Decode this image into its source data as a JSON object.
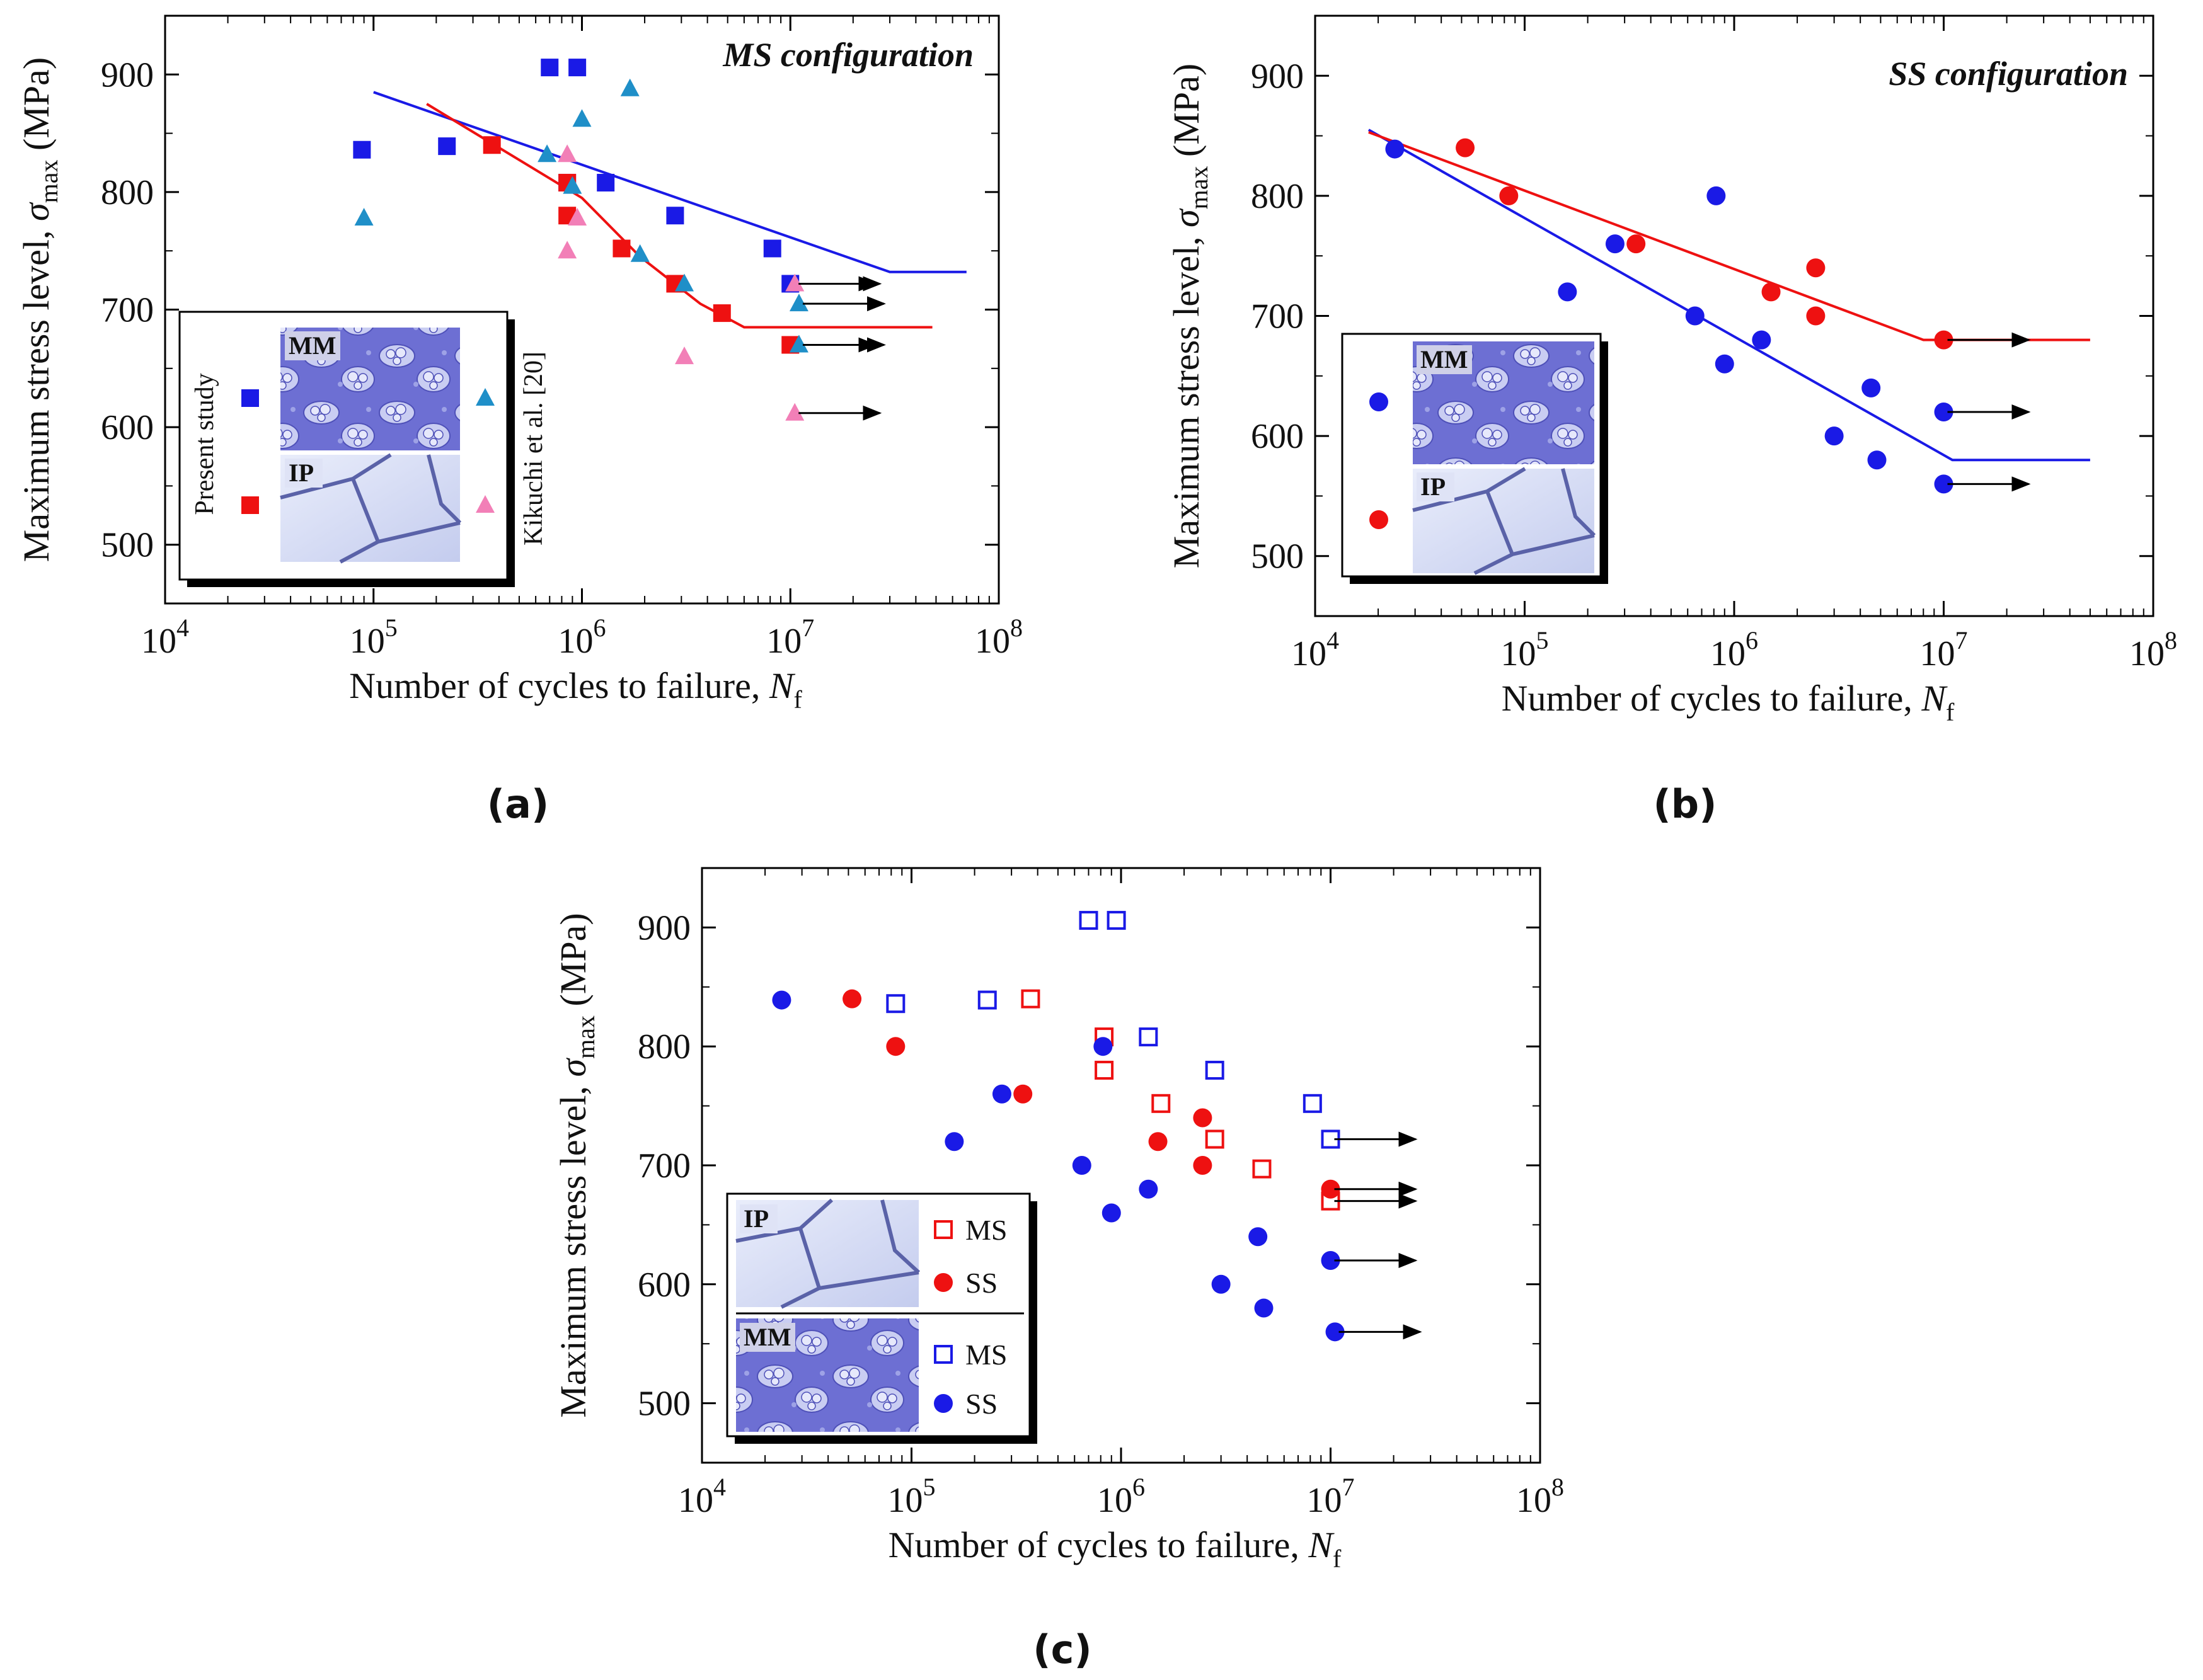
{
  "colors": {
    "red": "#ee1111",
    "blue": "#1a1ae6",
    "cyan": "#1f8fc8",
    "pink": "#f27fb7",
    "black": "#000000"
  },
  "chart_data": [
    {
      "id": "a",
      "type": "scatter",
      "panel_label": "(a)",
      "title": "MS configuration",
      "xlabel": "Number of cycles to failure, ",
      "xlabel_sym": "N",
      "xlabel_sub": "f",
      "ylabel": "Maximum stress level, ",
      "ylabel_sym": "σ",
      "ylabel_sub": "max",
      "ylabel_unit": " (MPa)",
      "xscale": "log",
      "xlim": [
        10000,
        100000000
      ],
      "ylim": [
        450,
        950
      ],
      "yticks": [
        500,
        600,
        700,
        800,
        900
      ],
      "xticks": [
        10000,
        100000,
        1000000,
        10000000,
        100000000
      ],
      "xtick_base": "10",
      "xtick_exps": [
        "4",
        "5",
        "6",
        "7",
        "8"
      ],
      "legend": {
        "side_left": "Present study",
        "side_right": "Kikuchi et al. [20]",
        "inset_tags": [
          "MM",
          "IP"
        ]
      },
      "series": [
        {
          "name": "Present study MM",
          "marker": "square",
          "color": "#1a1ae6",
          "points": [
            [
              88000,
              836
            ],
            [
              225000,
              839
            ],
            [
              700000,
              906
            ],
            [
              950000,
              906
            ],
            [
              850000,
              808
            ],
            [
              1300000,
              808
            ],
            [
              2800000,
              780
            ],
            [
              8200000,
              752
            ],
            [
              10000000,
              722
            ]
          ],
          "runout": [
            [
              10000000,
              722
            ]
          ]
        },
        {
          "name": "Present study IP",
          "marker": "square",
          "color": "#ee1111",
          "points": [
            [
              370000,
              840
            ],
            [
              850000,
              808
            ],
            [
              850000,
              780
            ],
            [
              1550000,
              752
            ],
            [
              2800000,
              722
            ],
            [
              4700000,
              697
            ],
            [
              10000000,
              670
            ]
          ],
          "runout": [
            [
              10000000,
              670
            ]
          ]
        },
        {
          "name": "Kikuchi et al. MM",
          "marker": "triangle",
          "color": "#1f8fc8",
          "points": [
            [
              90000,
              778
            ],
            [
              680000,
              832
            ],
            [
              900000,
              805
            ],
            [
              1000000,
              862
            ],
            [
              1700000,
              888
            ],
            [
              1900000,
              747
            ],
            [
              3100000,
              722
            ],
            [
              11000000,
              705
            ],
            [
              11000000,
              670
            ]
          ],
          "runout": [
            [
              11000000,
              705
            ],
            [
              11000000,
              670
            ]
          ]
        },
        {
          "name": "Kikuchi et al. IP",
          "marker": "triangle",
          "color": "#f27fb7",
          "points": [
            [
              850000,
              832
            ],
            [
              950000,
              778
            ],
            [
              850000,
              750
            ],
            [
              3100000,
              660
            ],
            [
              10500000,
              722
            ],
            [
              10500000,
              612
            ]
          ],
          "runout": [
            [
              10500000,
              722
            ],
            [
              10500000,
              612
            ]
          ]
        }
      ],
      "fit_lines": [
        {
          "color": "#1a1ae6",
          "points": [
            [
              100000,
              885
            ],
            [
              30000000,
              732
            ],
            [
              70000000,
              732
            ]
          ]
        },
        {
          "color": "#ee1111",
          "points": [
            [
              180000,
              875
            ],
            [
              1000000,
              795
            ],
            [
              1900000,
              745
            ],
            [
              3700000,
              705
            ],
            [
              6000000,
              685
            ],
            [
              48000000,
              685
            ]
          ]
        }
      ]
    },
    {
      "id": "b",
      "type": "scatter",
      "panel_label": "(b)",
      "title": "SS configuration",
      "xlabel": "Number of cycles to failure, ",
      "xlabel_sym": "N",
      "xlabel_sub": "f",
      "ylabel": "Maximum stress level, ",
      "ylabel_sym": "σ",
      "ylabel_sub": "max",
      "ylabel_unit": " (MPa)",
      "xscale": "log",
      "xlim": [
        10000,
        100000000
      ],
      "ylim": [
        450,
        950
      ],
      "yticks": [
        500,
        600,
        700,
        800,
        900
      ],
      "xticks": [
        10000,
        100000,
        1000000,
        10000000,
        100000000
      ],
      "xtick_base": "10",
      "xtick_exps": [
        "4",
        "5",
        "6",
        "7",
        "8"
      ],
      "legend": {
        "inset_tags": [
          "MM",
          "IP"
        ]
      },
      "series": [
        {
          "name": "MM",
          "marker": "circle",
          "color": "#1a1ae6",
          "points": [
            [
              24000,
              839
            ],
            [
              160000,
              720
            ],
            [
              270000,
              760
            ],
            [
              650000,
              700
            ],
            [
              820000,
              800
            ],
            [
              900000,
              660
            ],
            [
              1350000,
              680
            ],
            [
              3000000,
              600
            ],
            [
              4500000,
              640
            ],
            [
              4800000,
              580
            ],
            [
              10000000,
              620
            ],
            [
              10000000,
              560
            ]
          ],
          "runout": [
            [
              10000000,
              620
            ],
            [
              10000000,
              560
            ]
          ]
        },
        {
          "name": "IP",
          "marker": "circle",
          "color": "#ee1111",
          "points": [
            [
              52000,
              840
            ],
            [
              84000,
              800
            ],
            [
              340000,
              760
            ],
            [
              1500000,
              720
            ],
            [
              2450000,
              740
            ],
            [
              2450000,
              700
            ],
            [
              10000000,
              680
            ]
          ],
          "runout": [
            [
              10000000,
              680
            ]
          ]
        }
      ],
      "fit_lines": [
        {
          "color": "#1a1ae6",
          "points": [
            [
              18000,
              855
            ],
            [
              11000000,
              580
            ],
            [
              50000000,
              580
            ]
          ]
        },
        {
          "color": "#ee1111",
          "points": [
            [
              18000,
              853
            ],
            [
              8000000,
              680
            ],
            [
              50000000,
              680
            ]
          ]
        }
      ]
    },
    {
      "id": "c",
      "type": "scatter",
      "panel_label": "(c)",
      "xlabel": "Number of cycles to failure, ",
      "xlabel_sym": "N",
      "xlabel_sub": "f",
      "ylabel": "Maximum stress level, ",
      "ylabel_sym": "σ",
      "ylabel_sub": "max",
      "ylabel_unit": " (MPa)",
      "xscale": "log",
      "xlim": [
        10000,
        100000000
      ],
      "ylim": [
        450,
        950
      ],
      "yticks": [
        500,
        600,
        700,
        800,
        900
      ],
      "xticks": [
        10000,
        100000,
        1000000,
        10000000,
        100000000
      ],
      "xtick_base": "10",
      "xtick_exps": [
        "4",
        "5",
        "6",
        "7",
        "8"
      ],
      "legend": {
        "groups": [
          {
            "tag": "IP",
            "entries": [
              {
                "label": "MS",
                "marker": "open-square",
                "color": "#ee1111"
              },
              {
                "label": "SS",
                "marker": "circle",
                "color": "#ee1111"
              }
            ]
          },
          {
            "tag": "MM",
            "entries": [
              {
                "label": "MS",
                "marker": "open-square",
                "color": "#1a1ae6"
              },
              {
                "label": "SS",
                "marker": "circle",
                "color": "#1a1ae6"
              }
            ]
          }
        ]
      },
      "series": [
        {
          "name": "IP MS",
          "marker": "open-square",
          "color": "#ee1111",
          "points": [
            [
              370000,
              840
            ],
            [
              830000,
              808
            ],
            [
              830000,
              780
            ],
            [
              1550000,
              752
            ],
            [
              2800000,
              722
            ],
            [
              4700000,
              697
            ],
            [
              10000000,
              670
            ]
          ],
          "runout": [
            [
              10000000,
              670
            ]
          ]
        },
        {
          "name": "IP SS",
          "marker": "circle",
          "color": "#ee1111",
          "points": [
            [
              52000,
              840
            ],
            [
              84000,
              800
            ],
            [
              340000,
              760
            ],
            [
              1500000,
              720
            ],
            [
              2450000,
              740
            ],
            [
              2450000,
              700
            ],
            [
              10000000,
              680
            ]
          ],
          "runout": [
            [
              10000000,
              680
            ]
          ]
        },
        {
          "name": "MM MS",
          "marker": "open-square",
          "color": "#1a1ae6",
          "points": [
            [
              84000,
              836
            ],
            [
              230000,
              839
            ],
            [
              700000,
              906
            ],
            [
              950000,
              906
            ],
            [
              1350000,
              808
            ],
            [
              2800000,
              780
            ],
            [
              8200000,
              752
            ],
            [
              10000000,
              722
            ]
          ],
          "runout": [
            [
              10000000,
              722
            ]
          ]
        },
        {
          "name": "MM SS",
          "marker": "circle",
          "color": "#1a1ae6",
          "points": [
            [
              24000,
              839
            ],
            [
              160000,
              720
            ],
            [
              270000,
              760
            ],
            [
              650000,
              700
            ],
            [
              820000,
              800
            ],
            [
              900000,
              660
            ],
            [
              1350000,
              680
            ],
            [
              3000000,
              600
            ],
            [
              4500000,
              640
            ],
            [
              4800000,
              580
            ],
            [
              10000000,
              620
            ],
            [
              10500000,
              560
            ]
          ],
          "runout": [
            [
              10000000,
              620
            ],
            [
              10500000,
              560
            ]
          ]
        }
      ],
      "fit_lines": []
    }
  ]
}
